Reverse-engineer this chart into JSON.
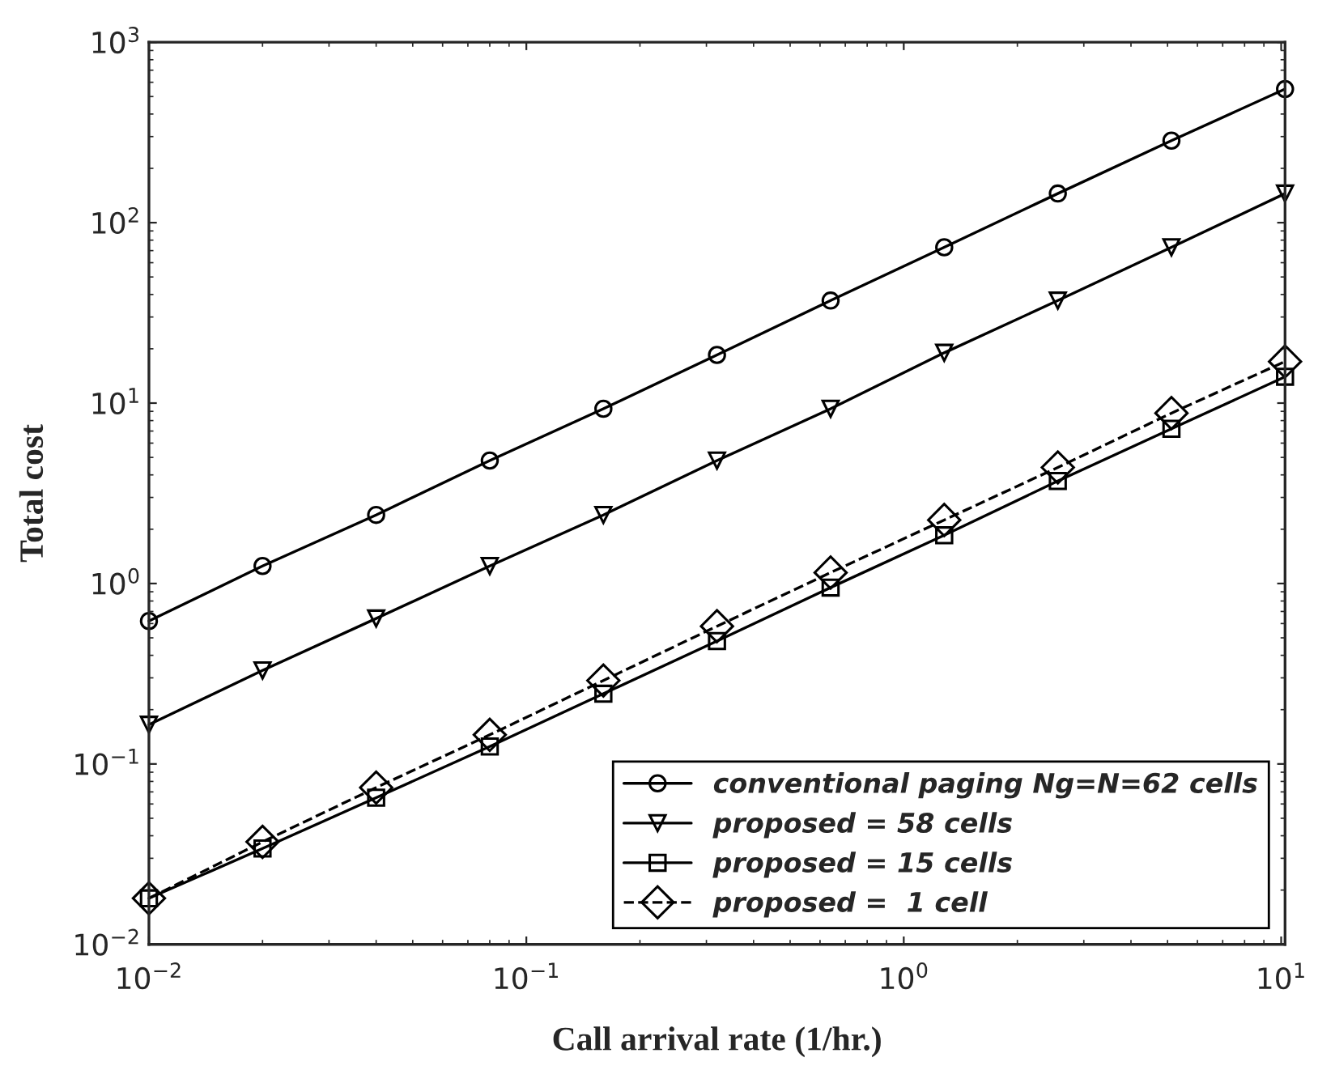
{
  "chart_data": {
    "type": "line",
    "xlabel": "Call arrival rate (1/hr.)",
    "ylabel": "Total cost",
    "log": "xy",
    "x": [
      0.01,
      0.02,
      0.04,
      0.08,
      0.16,
      0.32,
      0.64,
      1.28,
      2.56,
      5.12,
      10.24
    ],
    "series": [
      {
        "name": "conventional paging Ng=N=62 cells",
        "color": "#000000",
        "marker": "circle",
        "line_style": "solid",
        "values": [
          0.62,
          1.25,
          2.4,
          4.8,
          9.3,
          18.5,
          37,
          73,
          145,
          285,
          550
        ]
      },
      {
        "name": "proposed = 58 cells",
        "color": "#000000",
        "marker": "triangle",
        "line_style": "solid",
        "values": [
          0.165,
          0.33,
          0.64,
          1.25,
          2.4,
          4.8,
          9.3,
          19,
          37,
          73,
          145
        ]
      },
      {
        "name": "proposed = 15 cells",
        "color": "#000000",
        "marker": "square",
        "line_style": "solid",
        "values": [
          0.018,
          0.034,
          0.065,
          0.125,
          0.245,
          0.48,
          0.95,
          1.85,
          3.7,
          7.2,
          14
        ]
      },
      {
        "name": "proposed =  1 cell",
        "color": "#000000",
        "marker": "diamond",
        "line_style": "dashed",
        "values": [
          0.018,
          0.037,
          0.074,
          0.145,
          0.29,
          0.58,
          1.15,
          2.25,
          4.4,
          8.8,
          17
        ]
      }
    ],
    "xlim": [
      0.01,
      10.24
    ],
    "ylim": [
      0.01,
      1000
    ],
    "xticks": [
      {
        "value": 0.01,
        "label": "10$^{−2}$"
      },
      {
        "value": 0.1,
        "label": "10$^{−1}$"
      },
      {
        "value": 1,
        "label": "10$^{0}$"
      },
      {
        "value": 10,
        "label": "10$^{1}$"
      }
    ],
    "yticks": [
      {
        "value": 0.01,
        "label": "10$^{−2}$"
      },
      {
        "value": 0.1,
        "label": "10$^{−1}$"
      },
      {
        "value": 1,
        "label": "10$^{0}$"
      },
      {
        "value": 10,
        "label": "10$^{1}$"
      },
      {
        "value": 100,
        "label": "10$^{2}$"
      },
      {
        "value": 1000,
        "label": "10$^{3}$"
      }
    ],
    "grid": false,
    "legend": "bottom right"
  }
}
